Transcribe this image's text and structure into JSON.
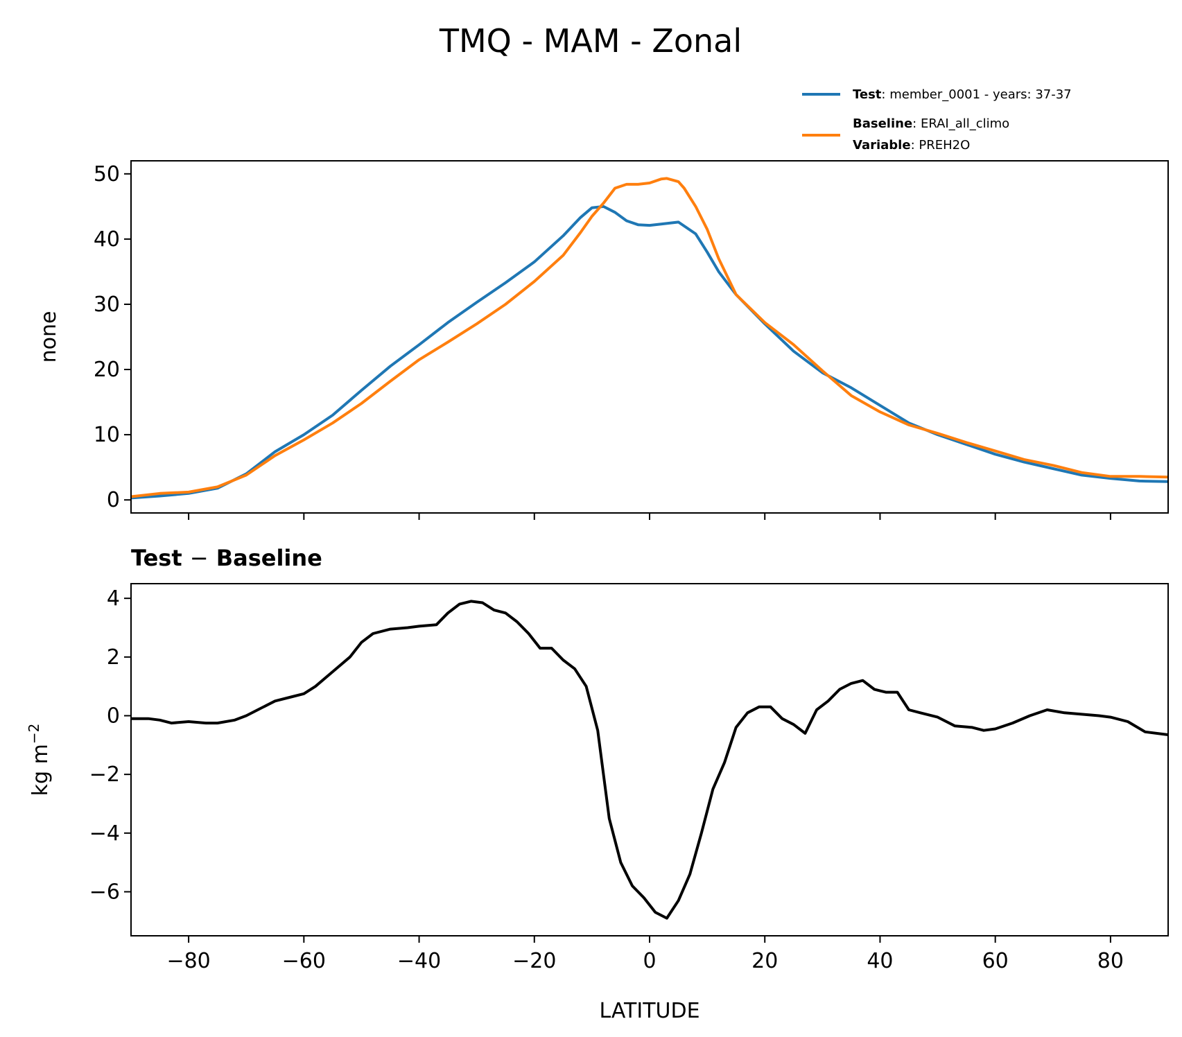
{
  "chart_data": [
    {
      "type": "line",
      "title": "TMQ - MAM - Zonal",
      "xlabel": "",
      "ylabel": "none",
      "xlim": [
        -90,
        90
      ],
      "ylim": [
        -2,
        52
      ],
      "yticks": [
        0,
        10,
        20,
        30,
        40,
        50
      ],
      "xticks": [
        -80,
        -60,
        -40,
        -20,
        0,
        20,
        40,
        60,
        80
      ],
      "legend": {
        "position": "top-right (above axes)",
        "entries": [
          {
            "series": "Test",
            "label_bold": "Test",
            "label_text": ": member_0001 - years: 37-37"
          },
          {
            "series": "Baseline",
            "label_bold": "Baseline",
            "label_text": ": ERAI_all_climo",
            "label2_bold": "Variable",
            "label2_text": ": PREH2O"
          }
        ]
      },
      "colors": {
        "Test": "#1f77b4",
        "Baseline": "#ff7f0e"
      },
      "series": [
        {
          "name": "Test",
          "x": [
            -90,
            -85,
            -80,
            -75,
            -70,
            -65,
            -60,
            -55,
            -50,
            -45,
            -40,
            -35,
            -30,
            -25,
            -20,
            -15,
            -12,
            -10,
            -8,
            -6,
            -4,
            -2,
            0,
            2,
            5,
            8,
            10,
            12,
            15,
            20,
            25,
            30,
            35,
            40,
            45,
            50,
            55,
            60,
            65,
            70,
            75,
            80,
            85,
            90
          ],
          "values": [
            0.3,
            0.6,
            1.0,
            1.8,
            4.0,
            7.4,
            10.0,
            13.0,
            16.8,
            20.5,
            23.8,
            27.2,
            30.3,
            33.3,
            36.5,
            40.5,
            43.3,
            44.8,
            45.0,
            44.1,
            42.8,
            42.2,
            42.1,
            42.3,
            42.6,
            40.8,
            38.0,
            35.0,
            31.5,
            27.0,
            22.8,
            19.5,
            17.2,
            14.5,
            11.8,
            10.0,
            8.5,
            7.0,
            5.8,
            4.8,
            3.8,
            3.3,
            2.9,
            2.8
          ]
        },
        {
          "name": "Baseline",
          "x": [
            -90,
            -85,
            -80,
            -75,
            -70,
            -65,
            -60,
            -55,
            -50,
            -45,
            -40,
            -35,
            -30,
            -25,
            -20,
            -15,
            -12,
            -10,
            -8,
            -6,
            -4,
            -2,
            0,
            2,
            3,
            5,
            6,
            8,
            10,
            12,
            15,
            20,
            25,
            30,
            35,
            40,
            45,
            50,
            55,
            60,
            65,
            70,
            75,
            80,
            85,
            90
          ],
          "values": [
            0.5,
            1.0,
            1.2,
            2.0,
            3.8,
            6.8,
            9.2,
            11.8,
            14.8,
            18.2,
            21.5,
            24.2,
            27.0,
            30.0,
            33.5,
            37.5,
            41.0,
            43.5,
            45.5,
            47.8,
            48.4,
            48.4,
            48.6,
            49.2,
            49.3,
            48.8,
            47.8,
            45.0,
            41.5,
            37.0,
            31.5,
            27.2,
            23.8,
            19.8,
            16.0,
            13.5,
            11.5,
            10.2,
            8.8,
            7.5,
            6.2,
            5.3,
            4.2,
            3.6,
            3.6,
            3.5
          ]
        }
      ]
    },
    {
      "type": "line",
      "title": "Test − Baseline",
      "title_bold": "Test",
      "title_op": "−",
      "title_bold2": "Baseline",
      "xlabel": "LATITUDE",
      "ylabel_base": "kg m",
      "ylabel_sup": "−2",
      "xlim": [
        -90,
        90
      ],
      "ylim": [
        -7.5,
        4.5
      ],
      "yticks": [
        4,
        2,
        0,
        -2,
        -4,
        -6
      ],
      "xticks": [
        -80,
        -60,
        -40,
        -20,
        0,
        20,
        40,
        60,
        80
      ],
      "colors": {
        "Difference": "#000000"
      },
      "series": [
        {
          "name": "Difference",
          "x": [
            -90,
            -87,
            -85,
            -83,
            -80,
            -77,
            -75,
            -72,
            -70,
            -68,
            -65,
            -62,
            -60,
            -58,
            -55,
            -52,
            -50,
            -48,
            -45,
            -42,
            -40,
            -37,
            -35,
            -33,
            -31,
            -29,
            -27,
            -25,
            -23,
            -21,
            -19,
            -17,
            -15,
            -13,
            -11,
            -9,
            -7,
            -5,
            -3,
            -1,
            1,
            3,
            5,
            7,
            9,
            11,
            13,
            15,
            17,
            19,
            21,
            23,
            25,
            27,
            29,
            31,
            33,
            35,
            37,
            39,
            41,
            43,
            45,
            47,
            50,
            53,
            56,
            58,
            60,
            63,
            66,
            69,
            72,
            75,
            78,
            80,
            83,
            86,
            90
          ],
          "values": [
            -0.1,
            -0.1,
            -0.15,
            -0.25,
            -0.2,
            -0.25,
            -0.25,
            -0.15,
            0.0,
            0.2,
            0.5,
            0.65,
            0.75,
            1.0,
            1.5,
            2.0,
            2.5,
            2.8,
            2.95,
            3.0,
            3.05,
            3.1,
            3.5,
            3.8,
            3.9,
            3.85,
            3.6,
            3.5,
            3.2,
            2.8,
            2.3,
            2.3,
            1.9,
            1.6,
            1.0,
            -0.5,
            -3.5,
            -5.0,
            -5.8,
            -6.2,
            -6.7,
            -6.9,
            -6.3,
            -5.4,
            -4.0,
            -2.5,
            -1.6,
            -0.4,
            0.1,
            0.3,
            0.3,
            -0.1,
            -0.3,
            -0.6,
            0.2,
            0.5,
            0.9,
            1.1,
            1.2,
            0.9,
            0.8,
            0.8,
            0.2,
            0.1,
            -0.05,
            -0.35,
            -0.4,
            -0.5,
            -0.45,
            -0.25,
            0.0,
            0.2,
            0.1,
            0.05,
            0.0,
            -0.05,
            -0.2,
            -0.55,
            -0.65
          ]
        }
      ]
    }
  ]
}
